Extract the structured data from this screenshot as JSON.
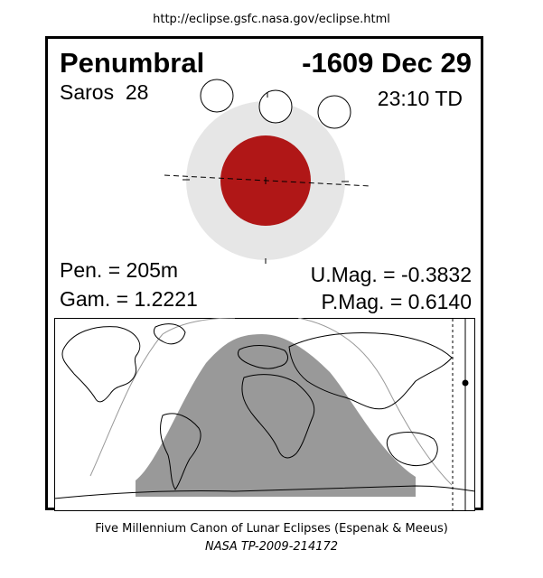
{
  "source_url": "http://eclipse.gsfc.nasa.gov/eclipse.html",
  "eclipse": {
    "type": "Penumbral",
    "date": "-1609 Dec 29",
    "saros": "Saros  28",
    "time": "23:10 TD"
  },
  "parameters": {
    "pen": "Pen. = 205m",
    "gam": "Gam. = 1.2221",
    "umag": "U.Mag. = -0.3832",
    "pmag": "P.Mag. = 0.6140"
  },
  "colors": {
    "umbra": "#b01717",
    "penumbra": "#e6e6e6",
    "night_side": "#999999",
    "frame": "#000000"
  },
  "credits": {
    "line1": "Five Millennium Canon of Lunar Eclipses (Espenak & Meeus)",
    "line2": "NASA TP-2009-214172"
  }
}
